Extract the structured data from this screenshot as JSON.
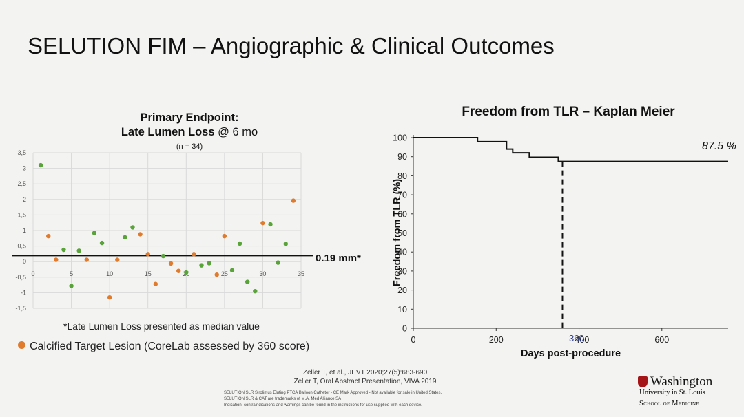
{
  "slide": {
    "title": "SELUTION FIM – Angiographic & Clinical Outcomes"
  },
  "left_chart": {
    "title_line1": "Primary Endpoint:",
    "title_line2_bold": "Late Lumen Loss",
    "title_line2_rest": " @ 6 mo",
    "n_label": "(n = 34)",
    "ref_label": "0.19 mm*",
    "footnote": "*Late Lumen Loss presented as median value",
    "legend_label": "Calcified Target Lesion (CoreLab assessed by 360 score)"
  },
  "right_chart": {
    "title": "Freedom from TLR – Kaplan Meier",
    "end_label": "87.5 %",
    "xlabel": "Days post-procedure",
    "ylabel": "Freedom from TLR (%)",
    "vline_label": "360"
  },
  "citations": {
    "line1": "Zeller T, et al., JEVT 2020;27(5):683-690",
    "line2": "Zeller T, Oral Abstract Presentation,  VIVA 2019"
  },
  "disclaimer": {
    "line1": "SELUTION SLR Sirolimus Eluting PTCA Balloon Catheter - CE Mark Approved - Not available for sale in United States.",
    "line2": "SELUTION SLR & CAT are trademarks of M.A. Med Alliance SA",
    "line3": "Indication, contraindications and warnings can be found in the instructions for use supplied with each device."
  },
  "logo": {
    "name": "Washington",
    "sub": "University in St. Louis",
    "school": "School of Medicine"
  },
  "colors": {
    "calcified": "#e07b2e",
    "non_calcified": "#5aa23a",
    "grid": "#d9d9d9",
    "accent_red": "#a51417"
  },
  "chart_data": [
    {
      "type": "scatter",
      "title": "Primary Endpoint: Late Lumen Loss @ 6 mo",
      "subtitle": "(n = 34)",
      "xlim": [
        0,
        35
      ],
      "ylim": [
        -1.5,
        3.5
      ],
      "xticks": [
        "0",
        "5",
        "10",
        "15",
        "20",
        "25",
        "30",
        "35"
      ],
      "yticks": [
        "3,5",
        "3",
        "2,5",
        "2",
        "1,5",
        "1",
        "0,5",
        "0",
        "-0,5",
        "-1",
        "-1,5"
      ],
      "grid": true,
      "reference_line": {
        "y": 0.19,
        "label": "0.19 mm*"
      },
      "series": [
        {
          "name": "Calcified Target Lesion (CoreLab assessed by 360 score)",
          "color": "#e07b2e",
          "points": [
            [
              2,
              0.82
            ],
            [
              3,
              0.06
            ],
            [
              7,
              0.06
            ],
            [
              10,
              -1.15
            ],
            [
              11,
              0.06
            ],
            [
              14,
              0.88
            ],
            [
              15,
              0.24
            ],
            [
              16,
              -0.72
            ],
            [
              18,
              -0.06
            ],
            [
              19,
              -0.3
            ],
            [
              21,
              0.24
            ],
            [
              24,
              -0.42
            ],
            [
              25,
              0.82
            ],
            [
              30,
              1.24
            ],
            [
              34,
              1.96
            ]
          ]
        },
        {
          "color": "#5aa23a",
          "points": [
            [
              1,
              3.1
            ],
            [
              4,
              0.38
            ],
            [
              5,
              -0.78
            ],
            [
              6,
              0.35
            ],
            [
              8,
              0.92
            ],
            [
              9,
              0.6
            ],
            [
              12,
              0.78
            ],
            [
              13,
              1.1
            ],
            [
              17,
              0.18
            ],
            [
              20,
              -0.35
            ],
            [
              22,
              -0.12
            ],
            [
              23,
              -0.05
            ],
            [
              26,
              -0.28
            ],
            [
              27,
              0.58
            ],
            [
              28,
              -0.65
            ],
            [
              29,
              -0.95
            ],
            [
              31,
              1.2
            ],
            [
              32,
              -0.03
            ],
            [
              33,
              0.57
            ]
          ]
        }
      ]
    },
    {
      "type": "line",
      "title": "Freedom from TLR – Kaplan Meier",
      "xlabel": "Days post-procedure",
      "ylabel": "Freedom from TLR (%)",
      "xlim": [
        0,
        760
      ],
      "ylim": [
        0,
        100
      ],
      "xticks": [
        "0",
        "200",
        "400",
        "600"
      ],
      "yticks": [
        "0",
        "10",
        "20",
        "30",
        "40",
        "50",
        "60",
        "70",
        "80",
        "90",
        "100"
      ],
      "grid": false,
      "series": [
        {
          "name": "Kaplan Meier",
          "step": true,
          "points": [
            [
              0,
              100
            ],
            [
              155,
              97.9
            ],
            [
              225,
              94
            ],
            [
              240,
              92
            ],
            [
              280,
              89.7
            ],
            [
              350,
              87.5
            ],
            [
              760,
              87.5
            ]
          ]
        }
      ],
      "vertical_line": {
        "x": 360,
        "label": "360",
        "style": "dashed"
      },
      "end_label": "87.5 %"
    }
  ]
}
